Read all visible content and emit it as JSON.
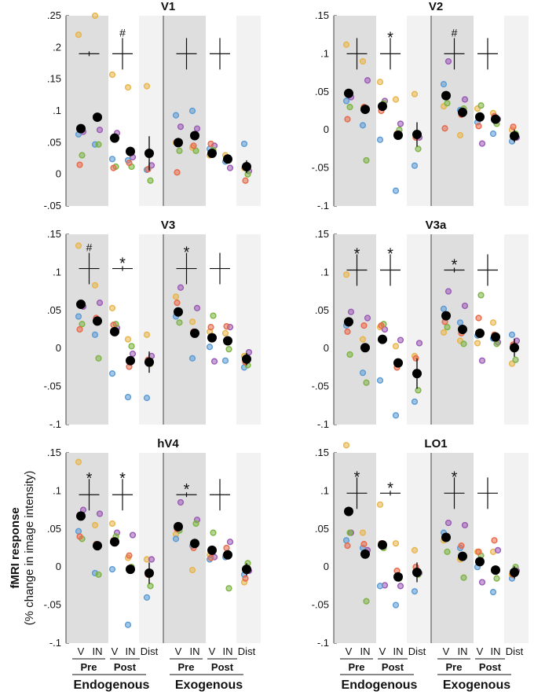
{
  "figure": {
    "ylabel_line1": "fMRI response",
    "ylabel_line2": "(% change in image intensity)",
    "groups": [
      "Endogenous",
      "Exogenous",
      "Endogenous",
      "Exogenous"
    ],
    "subgroups": [
      "Pre",
      "Post"
    ],
    "conds": [
      "V",
      "IN",
      "V",
      "IN",
      "Dist"
    ]
  },
  "colors": {
    "pre_shade": "#dedede",
    "dist_shade": "#f2f2f2",
    "mean": "#000000",
    "subjects": [
      "#e8b54a",
      "#9b59b6",
      "#5b9bd5",
      "#7cb342",
      "#e8694a"
    ]
  },
  "chart_data": [
    {
      "type": "scatter",
      "title": "V1",
      "ylim": [
        -0.05,
        0.25
      ],
      "ticks": [
        -0.05,
        0,
        0.05,
        0.1,
        0.15,
        0.2,
        0.25
      ],
      "panels": [
        {
          "sig": [
            {
              "c": 0.5,
              "y": 0.19,
              "h": "small",
              "lab": ""
            },
            {
              "c": 2.5,
              "y": 0.19,
              "h": "big",
              "lab": "#"
            }
          ],
          "means": [
            0.072,
            0.09,
            0.057,
            0.036,
            0.033
          ],
          "errs": [
            0.004,
            0.004,
            0.004,
            0.004,
            0.027
          ],
          "subjects": [
            [
              0.22,
              0.25,
              0.157,
              0.137,
              0.139
            ],
            [
              0.067,
              0.07,
              0.065,
              0.027,
              0.014
            ],
            [
              0.063,
              0.047,
              0.024,
              0.022,
              0.007
            ],
            [
              0.03,
              0.047,
              0.012,
              0.012,
              -0.01
            ],
            [
              0.015,
              0.09,
              0.01,
              0.018,
              0.008
            ]
          ]
        },
        {
          "sig": [
            {
              "c": 0.5,
              "y": 0.19,
              "h": "big",
              "lab": ""
            },
            {
              "c": 2.5,
              "y": 0.19,
              "h": "big",
              "lab": ""
            }
          ],
          "means": [
            0.05,
            0.061,
            0.033,
            0.024,
            0.012
          ],
          "errs": [
            0.004,
            0.004,
            0.004,
            0.004,
            0.01
          ],
          "subjects": [
            [
              0.05,
              0.042,
              0.03,
              0.03,
              0.01
            ],
            [
              0.075,
              0.072,
              0.045,
              0.01,
              0.005
            ],
            [
              0.093,
              0.1,
              0.04,
              0.02,
              0.048
            ],
            [
              0.037,
              0.037,
              0.038,
              0.022,
              0.0
            ],
            [
              0.003,
              0.045,
              0.048,
              0.025,
              -0.01
            ]
          ]
        }
      ]
    },
    {
      "type": "scatter",
      "title": "V2",
      "ylim": [
        -0.1,
        0.15
      ],
      "ticks": [
        -0.1,
        -0.05,
        0,
        0.05,
        0.1,
        0.15
      ],
      "panels": [
        {
          "sig": [
            {
              "c": 0.5,
              "y": 0.1,
              "h": "big",
              "lab": ""
            },
            {
              "c": 2.5,
              "y": 0.1,
              "h": "big",
              "lab": "*"
            }
          ],
          "means": [
            0.048,
            0.027,
            0.031,
            -0.007,
            -0.006
          ],
          "errs": [
            0.004,
            0.004,
            0.004,
            0.004,
            0.016
          ],
          "subjects": [
            [
              0.112,
              0.09,
              0.063,
              0.04,
              0.047
            ],
            [
              0.043,
              0.065,
              0.038,
              0.008,
              -0.01
            ],
            [
              0.038,
              0.006,
              -0.013,
              -0.08,
              -0.047
            ],
            [
              0.03,
              -0.04,
              0.035,
              0.0,
              -0.025
            ],
            [
              0.014,
              0.03,
              0.025,
              -0.005,
              -0.01
            ]
          ]
        },
        {
          "sig": [
            {
              "c": 0.5,
              "y": 0.1,
              "h": "big",
              "lab": "#"
            },
            {
              "c": 2.5,
              "y": 0.1,
              "h": "big",
              "lab": ""
            }
          ],
          "means": [
            0.045,
            0.023,
            0.017,
            0.014,
            -0.008
          ],
          "errs": [
            0.004,
            0.004,
            0.004,
            0.004,
            0.008
          ],
          "subjects": [
            [
              0.031,
              -0.007,
              0.028,
              0.022,
              0.0
            ],
            [
              0.09,
              0.04,
              -0.018,
              0.014,
              -0.01
            ],
            [
              0.06,
              0.026,
              0.01,
              -0.005,
              -0.015
            ],
            [
              0.035,
              0.028,
              0.032,
              0.008,
              -0.005
            ],
            [
              0.002,
              0.02,
              0.005,
              0.018,
              0.004
            ]
          ]
        }
      ]
    },
    {
      "type": "scatter",
      "title": "V3",
      "ylim": [
        -0.1,
        0.15
      ],
      "ticks": [
        -0.1,
        -0.05,
        0,
        0.05,
        0.1,
        0.15
      ],
      "panels": [
        {
          "sig": [
            {
              "c": 0.5,
              "y": 0.105,
              "h": "big",
              "lab": "#"
            },
            {
              "c": 2.5,
              "y": 0.105,
              "h": "small",
              "lab": "*"
            }
          ],
          "means": [
            0.058,
            0.036,
            0.022,
            -0.016,
            -0.018
          ],
          "errs": [
            0.004,
            0.004,
            0.004,
            0.004,
            0.014
          ],
          "subjects": [
            [
              0.135,
              0.083,
              0.053,
              0.012,
              0.018
            ],
            [
              0.055,
              0.06,
              0.027,
              -0.007,
              -0.01
            ],
            [
              0.042,
              0.018,
              -0.033,
              -0.064,
              -0.065
            ],
            [
              0.032,
              -0.013,
              0.032,
              0.003,
              -0.02
            ],
            [
              0.025,
              0.04,
              0.031,
              -0.024,
              -0.015
            ]
          ]
        },
        {
          "sig": [
            {
              "c": 0.5,
              "y": 0.105,
              "h": "big",
              "lab": "*"
            },
            {
              "c": 2.5,
              "y": 0.105,
              "h": "big",
              "lab": ""
            }
          ],
          "means": [
            0.048,
            0.02,
            0.014,
            0.01,
            -0.014
          ],
          "errs": [
            0.004,
            0.004,
            0.004,
            0.004,
            0.008
          ],
          "subjects": [
            [
              0.068,
              0.035,
              0.022,
              0.02,
              -0.01
            ],
            [
              0.08,
              0.053,
              -0.017,
              0.028,
              -0.005
            ],
            [
              0.042,
              -0.013,
              0.002,
              -0.016,
              -0.025
            ],
            [
              0.034,
              0.02,
              0.043,
              -0.001,
              -0.022
            ],
            [
              0.06,
              0.022,
              0.028,
              0.029,
              -0.018
            ]
          ]
        }
      ]
    },
    {
      "type": "scatter",
      "title": "V3a",
      "ylim": [
        -0.1,
        0.15
      ],
      "ticks": [
        -0.1,
        -0.05,
        0,
        0.05,
        0.1,
        0.15
      ],
      "panels": [
        {
          "sig": [
            {
              "c": 0.5,
              "y": 0.103,
              "h": "big",
              "lab": "*"
            },
            {
              "c": 2.5,
              "y": 0.103,
              "h": "big",
              "lab": "*"
            }
          ],
          "means": [
            0.035,
            0.001,
            0.012,
            -0.019,
            -0.033
          ],
          "errs": [
            0.004,
            0.004,
            0.004,
            0.004,
            0.02
          ],
          "subjects": [
            [
              0.097,
              0.012,
              0.028,
              0.003,
              -0.01
            ],
            [
              0.048,
              0.04,
              0.025,
              0.011,
              0.007
            ],
            [
              0.03,
              -0.032,
              -0.042,
              -0.088,
              -0.07
            ],
            [
              -0.008,
              -0.045,
              0.032,
              -0.02,
              -0.055
            ],
            [
              0.022,
              0.03,
              0.03,
              -0.025,
              -0.013
            ]
          ]
        },
        {
          "sig": [
            {
              "c": 0.5,
              "y": 0.103,
              "h": "small",
              "lab": "*"
            },
            {
              "c": 2.5,
              "y": 0.103,
              "h": "big",
              "lab": ""
            }
          ],
          "means": [
            0.043,
            0.025,
            0.02,
            0.015,
            0.001
          ],
          "errs": [
            0.004,
            0.004,
            0.004,
            0.004,
            0.012
          ],
          "subjects": [
            [
              0.021,
              0.01,
              0.007,
              0.034,
              -0.02
            ],
            [
              0.075,
              0.056,
              -0.016,
              0.008,
              0.01
            ],
            [
              0.052,
              0.034,
              0.017,
              0.013,
              0.018
            ],
            [
              0.028,
              0.006,
              0.07,
              0.006,
              -0.015
            ],
            [
              0.035,
              0.02,
              0.04,
              0.018,
              0.005
            ]
          ]
        }
      ]
    },
    {
      "type": "scatter",
      "title": "hV4",
      "ylim": [
        -0.1,
        0.15
      ],
      "ticks": [
        -0.1,
        -0.05,
        0,
        0.05,
        0.1,
        0.15
      ],
      "panels": [
        {
          "sig": [
            {
              "c": 0.5,
              "y": 0.095,
              "h": "big",
              "lab": "*"
            },
            {
              "c": 2.5,
              "y": 0.095,
              "h": "big",
              "lab": "*"
            }
          ],
          "means": [
            0.067,
            0.028,
            0.033,
            -0.003,
            -0.008
          ],
          "errs": [
            0.004,
            0.004,
            0.004,
            0.004,
            0.014
          ],
          "subjects": [
            [
              0.138,
              0.055,
              0.057,
              0.012,
              0.01
            ],
            [
              0.075,
              0.07,
              0.045,
              0.042,
              0.01
            ],
            [
              0.047,
              -0.008,
              -0.003,
              -0.076,
              -0.04
            ],
            [
              0.037,
              -0.01,
              0.04,
              0.0,
              -0.025
            ],
            [
              0.04,
              0.03,
              0.035,
              0.015,
              -0.01
            ]
          ]
        },
        {
          "sig": [
            {
              "c": 0.5,
              "y": 0.095,
              "h": "small",
              "lab": "*"
            },
            {
              "c": 2.5,
              "y": 0.095,
              "h": "big",
              "lab": ""
            }
          ],
          "means": [
            0.053,
            0.031,
            0.022,
            0.016,
            -0.003
          ],
          "errs": [
            0.004,
            0.004,
            0.004,
            0.004,
            0.008
          ],
          "subjects": [
            [
              0.043,
              -0.004,
              0.016,
              0.015,
              -0.02
            ],
            [
              0.085,
              0.062,
              0.013,
              0.033,
              -0.005
            ],
            [
              0.037,
              0.028,
              0.01,
              0.013,
              -0.01
            ],
            [
              0.048,
              0.057,
              0.045,
              -0.028,
              0.005
            ],
            [
              0.05,
              0.025,
              0.012,
              0.025,
              -0.015
            ]
          ]
        }
      ]
    },
    {
      "type": "scatter",
      "title": "LO1",
      "ylim": [
        -0.1,
        0.15
      ],
      "ticks": [
        -0.1,
        -0.05,
        0,
        0.05,
        0.1,
        0.15
      ],
      "panels": [
        {
          "sig": [
            {
              "c": 0.5,
              "y": 0.097,
              "h": "big",
              "lab": "*"
            },
            {
              "c": 2.5,
              "y": 0.097,
              "h": "small",
              "lab": "*"
            }
          ],
          "means": [
            0.073,
            0.017,
            0.029,
            -0.013,
            -0.007
          ],
          "errs": [
            0.004,
            0.004,
            0.004,
            0.004,
            0.013
          ],
          "subjects": [
            [
              0.16,
              0.045,
              0.082,
              0.031,
              0.022
            ],
            [
              0.045,
              0.022,
              -0.024,
              -0.025,
              -0.008
            ],
            [
              0.035,
              0.025,
              -0.025,
              -0.05,
              -0.032
            ],
            [
              0.045,
              -0.045,
              0.025,
              -0.015,
              -0.01
            ],
            [
              0.028,
              0.03,
              0.031,
              -0.005,
              0.0
            ]
          ]
        },
        {
          "sig": [
            {
              "c": 0.5,
              "y": 0.097,
              "h": "big",
              "lab": "*"
            },
            {
              "c": 2.5,
              "y": 0.097,
              "h": "big",
              "lab": ""
            }
          ],
          "means": [
            0.039,
            0.014,
            0.007,
            -0.004,
            -0.007
          ],
          "errs": [
            0.004,
            0.004,
            0.004,
            0.004,
            0.008
          ],
          "subjects": [
            [
              0.035,
              0.01,
              0.02,
              0.02,
              -0.01
            ],
            [
              0.058,
              0.055,
              -0.02,
              0.022,
              -0.005
            ],
            [
              0.045,
              0.025,
              0.0,
              -0.033,
              -0.015
            ],
            [
              0.02,
              -0.014,
              0.015,
              -0.015,
              0.0
            ],
            [
              0.04,
              0.028,
              0.02,
              0.035,
              -0.01
            ]
          ]
        }
      ]
    }
  ]
}
